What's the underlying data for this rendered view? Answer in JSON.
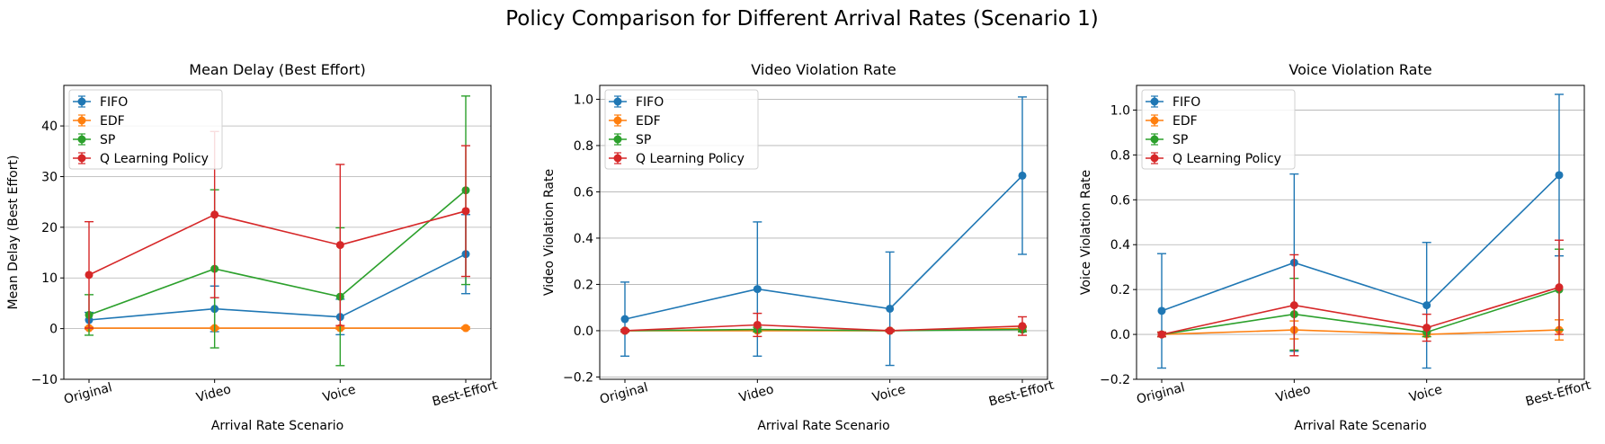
{
  "figure": {
    "title": "Policy Comparison for Different Arrival Rates (Scenario 1)"
  },
  "chart_data": [
    {
      "type": "line",
      "title": "Mean Delay (Best Effort)",
      "xlabel": "Arrival Rate Scenario",
      "ylabel": "Mean Delay (Best Effort)",
      "categories": [
        "Original",
        "Video",
        "Voice",
        "Best-Effort"
      ],
      "ylim": [
        -10,
        48
      ],
      "yticks": [
        -10,
        0,
        10,
        20,
        30,
        40
      ],
      "ytick_labels": [
        "−10",
        "0",
        "10",
        "20",
        "30",
        "40"
      ],
      "grid": "y",
      "legend_position": "top-left",
      "error_bars": true,
      "series": [
        {
          "name": "FIFO",
          "color": "#1f77b4",
          "values": [
            1.7,
            3.9,
            2.3,
            14.7
          ],
          "err": [
            1.5,
            4.5,
            3.5,
            7.8
          ]
        },
        {
          "name": "EDF",
          "color": "#ff7f0e",
          "values": [
            0.1,
            0.1,
            0.1,
            0.1
          ],
          "err": [
            0.2,
            0.2,
            0.2,
            0.2
          ]
        },
        {
          "name": "SP",
          "color": "#2ca02c",
          "values": [
            2.7,
            11.8,
            6.3,
            27.3
          ],
          "err": [
            4.0,
            15.6,
            13.6,
            18.6
          ]
        },
        {
          "name": "Q Learning Policy",
          "color": "#d62728",
          "values": [
            10.6,
            22.5,
            16.5,
            23.2
          ],
          "err": [
            10.5,
            16.4,
            15.9,
            12.9
          ]
        }
      ]
    },
    {
      "type": "line",
      "title": "Video Violation Rate",
      "xlabel": "Arrival Rate Scenario",
      "ylabel": "Video Violation Rate",
      "categories": [
        "Original",
        "Video",
        "Voice",
        "Best-Effort"
      ],
      "ylim": [
        -0.21,
        1.06
      ],
      "yticks": [
        -0.2,
        0.0,
        0.2,
        0.4,
        0.6,
        0.8,
        1.0
      ],
      "ytick_labels": [
        "−0.2",
        "0.0",
        "0.2",
        "0.4",
        "0.6",
        "0.8",
        "1.0"
      ],
      "grid": "y",
      "legend_position": "top-left",
      "error_bars": true,
      "series": [
        {
          "name": "FIFO",
          "color": "#1f77b4",
          "values": [
            0.05,
            0.18,
            0.095,
            0.67
          ],
          "err": [
            0.16,
            0.29,
            0.245,
            0.34
          ]
        },
        {
          "name": "EDF",
          "color": "#ff7f0e",
          "values": [
            0.0,
            0.0,
            0.0,
            0.01
          ],
          "err": [
            0.005,
            0.005,
            0.005,
            0.01
          ]
        },
        {
          "name": "SP",
          "color": "#2ca02c",
          "values": [
            0.0,
            0.005,
            0.0,
            0.005
          ],
          "err": [
            0.005,
            0.01,
            0.005,
            0.01
          ]
        },
        {
          "name": "Q Learning Policy",
          "color": "#d62728",
          "values": [
            0.0,
            0.025,
            0.0,
            0.02
          ],
          "err": [
            0.005,
            0.05,
            0.005,
            0.04
          ]
        }
      ]
    },
    {
      "type": "line",
      "title": "Voice Violation Rate",
      "xlabel": "Arrival Rate Scenario",
      "ylabel": "Voice Violation Rate",
      "categories": [
        "Original",
        "Video",
        "Voice",
        "Best-Effort"
      ],
      "ylim": [
        -0.2,
        1.11
      ],
      "yticks": [
        -0.2,
        0.0,
        0.2,
        0.4,
        0.6,
        0.8,
        1.0
      ],
      "ytick_labels": [
        "−0.2",
        "0.0",
        "0.2",
        "0.4",
        "0.6",
        "0.8",
        "1.0"
      ],
      "grid": "y",
      "legend_position": "top-left",
      "error_bars": true,
      "series": [
        {
          "name": "FIFO",
          "color": "#1f77b4",
          "values": [
            0.105,
            0.32,
            0.13,
            0.71
          ],
          "err": [
            0.255,
            0.395,
            0.28,
            0.36
          ]
        },
        {
          "name": "EDF",
          "color": "#ff7f0e",
          "values": [
            0.0,
            0.02,
            0.0,
            0.02
          ],
          "err": [
            0.01,
            0.04,
            0.01,
            0.045
          ]
        },
        {
          "name": "SP",
          "color": "#2ca02c",
          "values": [
            0.0,
            0.09,
            0.01,
            0.2
          ],
          "err": [
            0.01,
            0.16,
            0.02,
            0.18
          ]
        },
        {
          "name": "Q Learning Policy",
          "color": "#d62728",
          "values": [
            0.0,
            0.13,
            0.03,
            0.21
          ],
          "err": [
            0.01,
            0.225,
            0.06,
            0.21
          ]
        }
      ]
    }
  ]
}
